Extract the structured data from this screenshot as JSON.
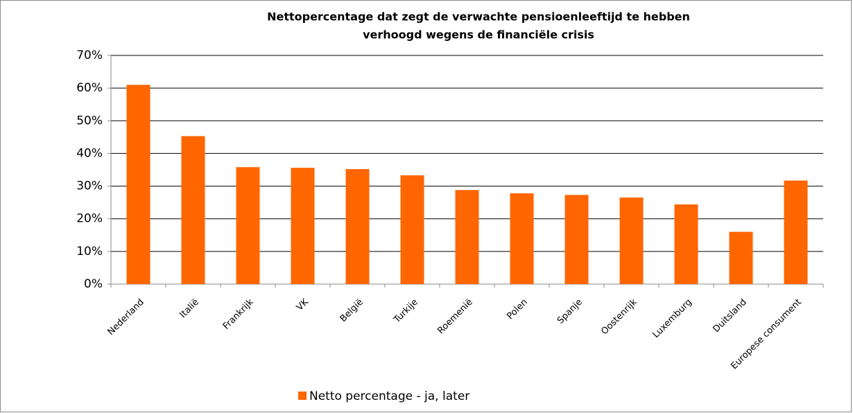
{
  "chart_data": {
    "type": "bar",
    "title": [
      "Nettopercentage dat zegt de verwachte pensioenleeftijd te hebben",
      "verhoogd wegens de financiële crisis"
    ],
    "categories": [
      "Nederland",
      "Italië",
      "Frankrijk",
      "VK",
      "België",
      "Turkije",
      "Roemenië",
      "Polen",
      "Spanje",
      "Oostenrijk",
      "Luxemburg",
      "Duitsland",
      "Europese consument"
    ],
    "series": [
      {
        "name": "Netto percentage - ja, later",
        "color": "#ff6600",
        "values": [
          61,
          45.3,
          35.8,
          35.6,
          35.2,
          33.3,
          28.8,
          27.8,
          27.3,
          26.5,
          24.4,
          16,
          31.7
        ]
      }
    ],
    "ylim": [
      0,
      70
    ],
    "yticks": [
      {
        "value": 0,
        "label": "0%"
      },
      {
        "value": 10,
        "label": "10%"
      },
      {
        "value": 20,
        "label": "20%"
      },
      {
        "value": 30,
        "label": "30%"
      },
      {
        "value": 40,
        "label": "40%"
      },
      {
        "value": 50,
        "label": "50%"
      },
      {
        "value": 60,
        "label": "60%"
      },
      {
        "value": 70,
        "label": "70%"
      }
    ],
    "grid": true,
    "legend": "bottom"
  }
}
